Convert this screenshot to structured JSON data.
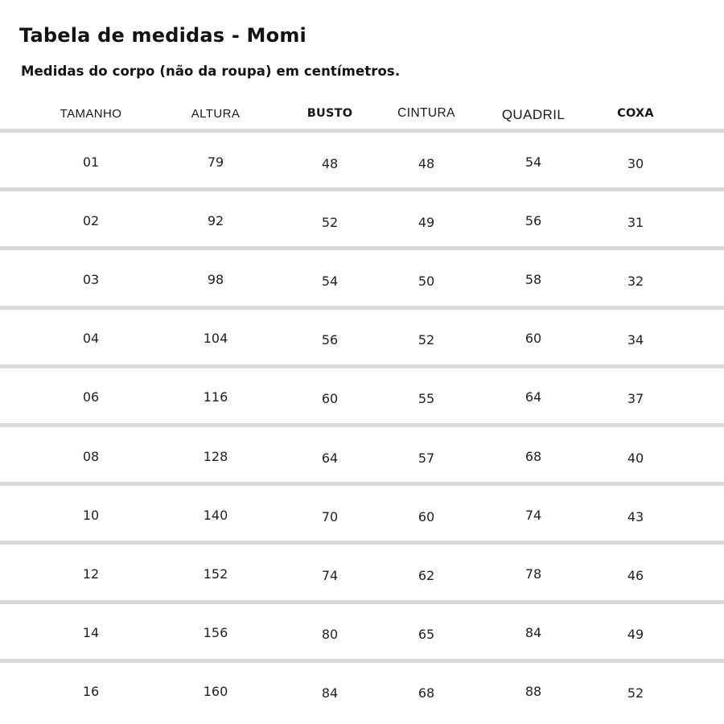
{
  "page": {
    "title": "Tabela de medidas - Momi",
    "subtitle": "Medidas do corpo (não da roupa) em centímetros."
  },
  "table": {
    "columns": [
      "TAMANHO",
      "ALTURA",
      "BUSTO",
      "CINTURA",
      "QUADRIL",
      "COXA"
    ],
    "unit": "centímetros",
    "rows": [
      [
        "01",
        "79",
        "48",
        "48",
        "54",
        "30"
      ],
      [
        "02",
        "92",
        "52",
        "49",
        "56",
        "31"
      ],
      [
        "03",
        "98",
        "54",
        "50",
        "58",
        "32"
      ],
      [
        "04",
        "104",
        "56",
        "52",
        "60",
        "34"
      ],
      [
        "06",
        "116",
        "60",
        "55",
        "64",
        "37"
      ],
      [
        "08",
        "128",
        "64",
        "57",
        "68",
        "40"
      ],
      [
        "10",
        "140",
        "70",
        "60",
        "74",
        "43"
      ],
      [
        "12",
        "152",
        "74",
        "62",
        "78",
        "46"
      ],
      [
        "14",
        "156",
        "80",
        "65",
        "84",
        "49"
      ],
      [
        "16",
        "160",
        "84",
        "68",
        "88",
        "52"
      ]
    ]
  },
  "colors": {
    "divider": "#d9d9d9",
    "text": "#1e1e1e",
    "background": "#ffffff"
  }
}
